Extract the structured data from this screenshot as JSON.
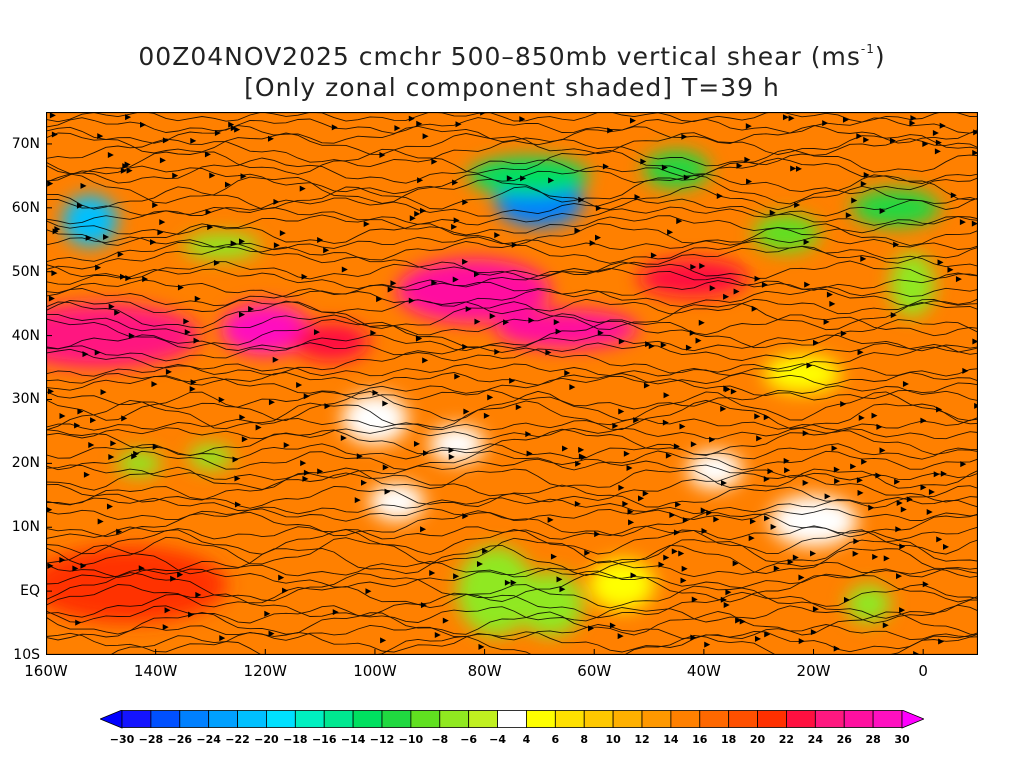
{
  "title": {
    "line1_prefix": "00Z04NOV2025 cmchr 500–850mb vertical shear (ms",
    "line1_sup": "-1",
    "line1_suffix": ")",
    "line2": "[Only zonal component shaded] T=39 h"
  },
  "map": {
    "extent": {
      "lon_min": -160,
      "lon_max": 10,
      "lat_min": -10,
      "lat_max": 75
    },
    "lat_labels": [
      {
        "text": "70N",
        "lat": 70
      },
      {
        "text": "60N",
        "lat": 60
      },
      {
        "text": "50N",
        "lat": 50
      },
      {
        "text": "40N",
        "lat": 40
      },
      {
        "text": "30N",
        "lat": 30
      },
      {
        "text": "20N",
        "lat": 20
      },
      {
        "text": "10N",
        "lat": 10
      },
      {
        "text": "EQ",
        "lat": 0
      },
      {
        "text": "10S",
        "lat": -10
      }
    ],
    "lon_labels": [
      {
        "text": "160W",
        "lon": -160
      },
      {
        "text": "140W",
        "lon": -140
      },
      {
        "text": "120W",
        "lon": -120
      },
      {
        "text": "100W",
        "lon": -100
      },
      {
        "text": "80W",
        "lon": -80
      },
      {
        "text": "60W",
        "lon": -60
      },
      {
        "text": "40W",
        "lon": -40
      },
      {
        "text": "20W",
        "lon": -20
      },
      {
        "text": "0",
        "lon": 0
      }
    ],
    "background_value": 14,
    "shear_features": [
      {
        "lon": -150,
        "lat": 40,
        "rlon": 18,
        "rlat": 5,
        "value": 24
      },
      {
        "lon": -120,
        "lat": 41,
        "rlon": 8,
        "rlat": 4,
        "value": 28
      },
      {
        "lon": -108,
        "lat": 39,
        "rlon": 7,
        "rlat": 3,
        "value": 22
      },
      {
        "lon": -82,
        "lat": 47,
        "rlon": 14,
        "rlat": 5,
        "value": 26
      },
      {
        "lon": -65,
        "lat": 41,
        "rlon": 13,
        "rlat": 3,
        "value": 26
      },
      {
        "lon": -42,
        "lat": 49,
        "rlon": 10,
        "rlat": 3,
        "value": 22
      },
      {
        "lon": -145,
        "lat": 1,
        "rlon": 18,
        "rlat": 6,
        "value": 20
      },
      {
        "lon": -70,
        "lat": 61,
        "rlon": 8,
        "rlat": 4,
        "value": -26
      },
      {
        "lon": -72,
        "lat": 65,
        "rlon": 11,
        "rlat": 3,
        "value": -14
      },
      {
        "lon": -152,
        "lat": 58,
        "rlon": 5,
        "rlat": 4,
        "value": -22
      },
      {
        "lon": -128,
        "lat": 54,
        "rlon": 7,
        "rlat": 2,
        "value": -8
      },
      {
        "lon": -45,
        "lat": 66,
        "rlon": 6,
        "rlat": 3,
        "value": -12
      },
      {
        "lon": -5,
        "lat": 60,
        "rlon": 8,
        "rlat": 3,
        "value": -12
      },
      {
        "lon": -25,
        "lat": 56,
        "rlon": 6,
        "rlat": 3,
        "value": -10
      },
      {
        "lon": -2,
        "lat": 48,
        "rlon": 4,
        "rlat": 5,
        "value": -8
      },
      {
        "lon": -78,
        "lat": 0,
        "rlon": 7,
        "rlat": 7,
        "value": -8
      },
      {
        "lon": -68,
        "lat": -2,
        "rlon": 6,
        "rlat": 5,
        "value": -8
      },
      {
        "lon": -96,
        "lat": 14,
        "rlon": 5,
        "rlat": 3,
        "value": 2
      },
      {
        "lon": -85,
        "lat": 23,
        "rlon": 5,
        "rlat": 3,
        "value": 2
      },
      {
        "lon": -100,
        "lat": 27,
        "rlon": 6,
        "rlat": 4,
        "value": 2
      },
      {
        "lon": -38,
        "lat": 19,
        "rlon": 5,
        "rlat": 3,
        "value": 2
      },
      {
        "lon": -20,
        "lat": 11,
        "rlon": 8,
        "rlat": 4,
        "value": 2
      },
      {
        "lon": -55,
        "lat": 1,
        "rlon": 6,
        "rlat": 4,
        "value": 4
      },
      {
        "lon": -130,
        "lat": 21,
        "rlon": 4,
        "rlat": 2,
        "value": -8
      },
      {
        "lon": -143,
        "lat": 20,
        "rlon": 4,
        "rlat": 2,
        "value": -8
      },
      {
        "lon": -10,
        "lat": -2,
        "rlon": 4,
        "rlat": 3,
        "value": -8
      },
      {
        "lon": -22,
        "lat": 34,
        "rlon": 7,
        "rlat": 3,
        "value": 4
      }
    ]
  },
  "colorbar": {
    "labels": [
      "-30",
      "-28",
      "-26",
      "-24",
      "-22",
      "-20",
      "-18",
      "-16",
      "-14",
      "-12",
      "-10",
      "-8",
      "-6",
      "-4",
      "4",
      "6",
      "8",
      "10",
      "12",
      "14",
      "16",
      "18",
      "20",
      "22",
      "24",
      "26",
      "28",
      "30"
    ],
    "colors": [
      "#1414ff",
      "#0050ff",
      "#0080ff",
      "#00a0ff",
      "#00c0ff",
      "#00e0ff",
      "#00f0c0",
      "#00e890",
      "#00e060",
      "#20d840",
      "#60e020",
      "#90e820",
      "#c0f020",
      "#ffffff",
      "#ffff00",
      "#ffe000",
      "#ffc800",
      "#ffb000",
      "#ff9800",
      "#ff8000",
      "#ff6800",
      "#ff5000",
      "#ff3000",
      "#ff1040",
      "#ff1880",
      "#ff10a0",
      "#ff10c0"
    ],
    "below_color": "#0000ff",
    "above_color": "#ff00ff"
  }
}
